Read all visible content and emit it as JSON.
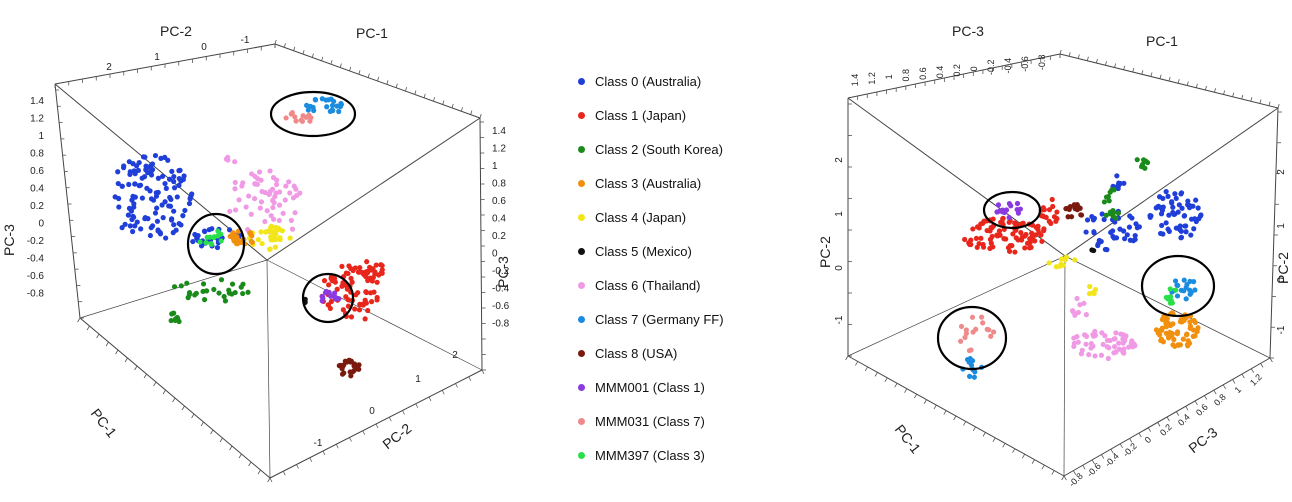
{
  "chart_data": [
    {
      "type": "scatter",
      "title": "",
      "axis_labels": [
        "PC-2",
        "PC-1",
        "PC-3",
        "PC-3",
        "PC-1",
        "PC-2"
      ],
      "tick_labels": {
        "pc2_top": [
          "2",
          "1",
          "0",
          "-1"
        ],
        "pc3": [
          "1.4",
          "1.2",
          "1",
          "0.8",
          "0.6",
          "0.4",
          "0.2",
          "0",
          "-0.2",
          "-0.4",
          "-0.6",
          "-0.8"
        ],
        "pc2_bottom": [
          "-1",
          "0",
          "1",
          "2"
        ]
      },
      "series": [
        {
          "name": "Class 0 (Australia)",
          "color": "#1f3fd8"
        },
        {
          "name": "Class 1 (Japan)",
          "color": "#e8261c"
        },
        {
          "name": "Class 2 (South Korea)",
          "color": "#1a8a1a"
        },
        {
          "name": "Class 3 (Australia)",
          "color": "#f0900e"
        },
        {
          "name": "Class 4 (Japan)",
          "color": "#f2e61a"
        },
        {
          "name": "Class 5 (Mexico)",
          "color": "#111111"
        },
        {
          "name": "Class 6 (Thailand)",
          "color": "#f09ae6"
        },
        {
          "name": "Class 7 (Germany FF)",
          "color": "#1a8ce0"
        },
        {
          "name": "Class 8 (USA)",
          "color": "#7a1a0e"
        },
        {
          "name": "MMM001 (Class 1)",
          "color": "#8a3ae0"
        },
        {
          "name": "MMM031 (Class 7)",
          "color": "#f08a8a"
        },
        {
          "name": "MMM397 (Class 3)",
          "color": "#2ae04a"
        }
      ],
      "highlight_circles": 3
    },
    {
      "type": "scatter",
      "title": "",
      "axis_labels": [
        "PC-3",
        "PC-1",
        "PC-2",
        "PC-2",
        "PC-1",
        "PC-3"
      ],
      "tick_labels": {
        "pc3_top": [
          "1.4",
          "1.2",
          "1",
          "0.8",
          "0.6",
          "0.4",
          "0.2",
          "0",
          "-0.2",
          "-0.4",
          "-0.6",
          "-0.8"
        ],
        "pc2": [
          "2",
          "1",
          "0",
          "-1"
        ],
        "pc3_bottom": [
          "-0.8",
          "-0.6",
          "-0.4",
          "-0.2",
          "0",
          "0.2",
          "0.4",
          "0.6",
          "0.8",
          "1",
          "1.2"
        ]
      },
      "highlight_circles": 3
    }
  ]
}
